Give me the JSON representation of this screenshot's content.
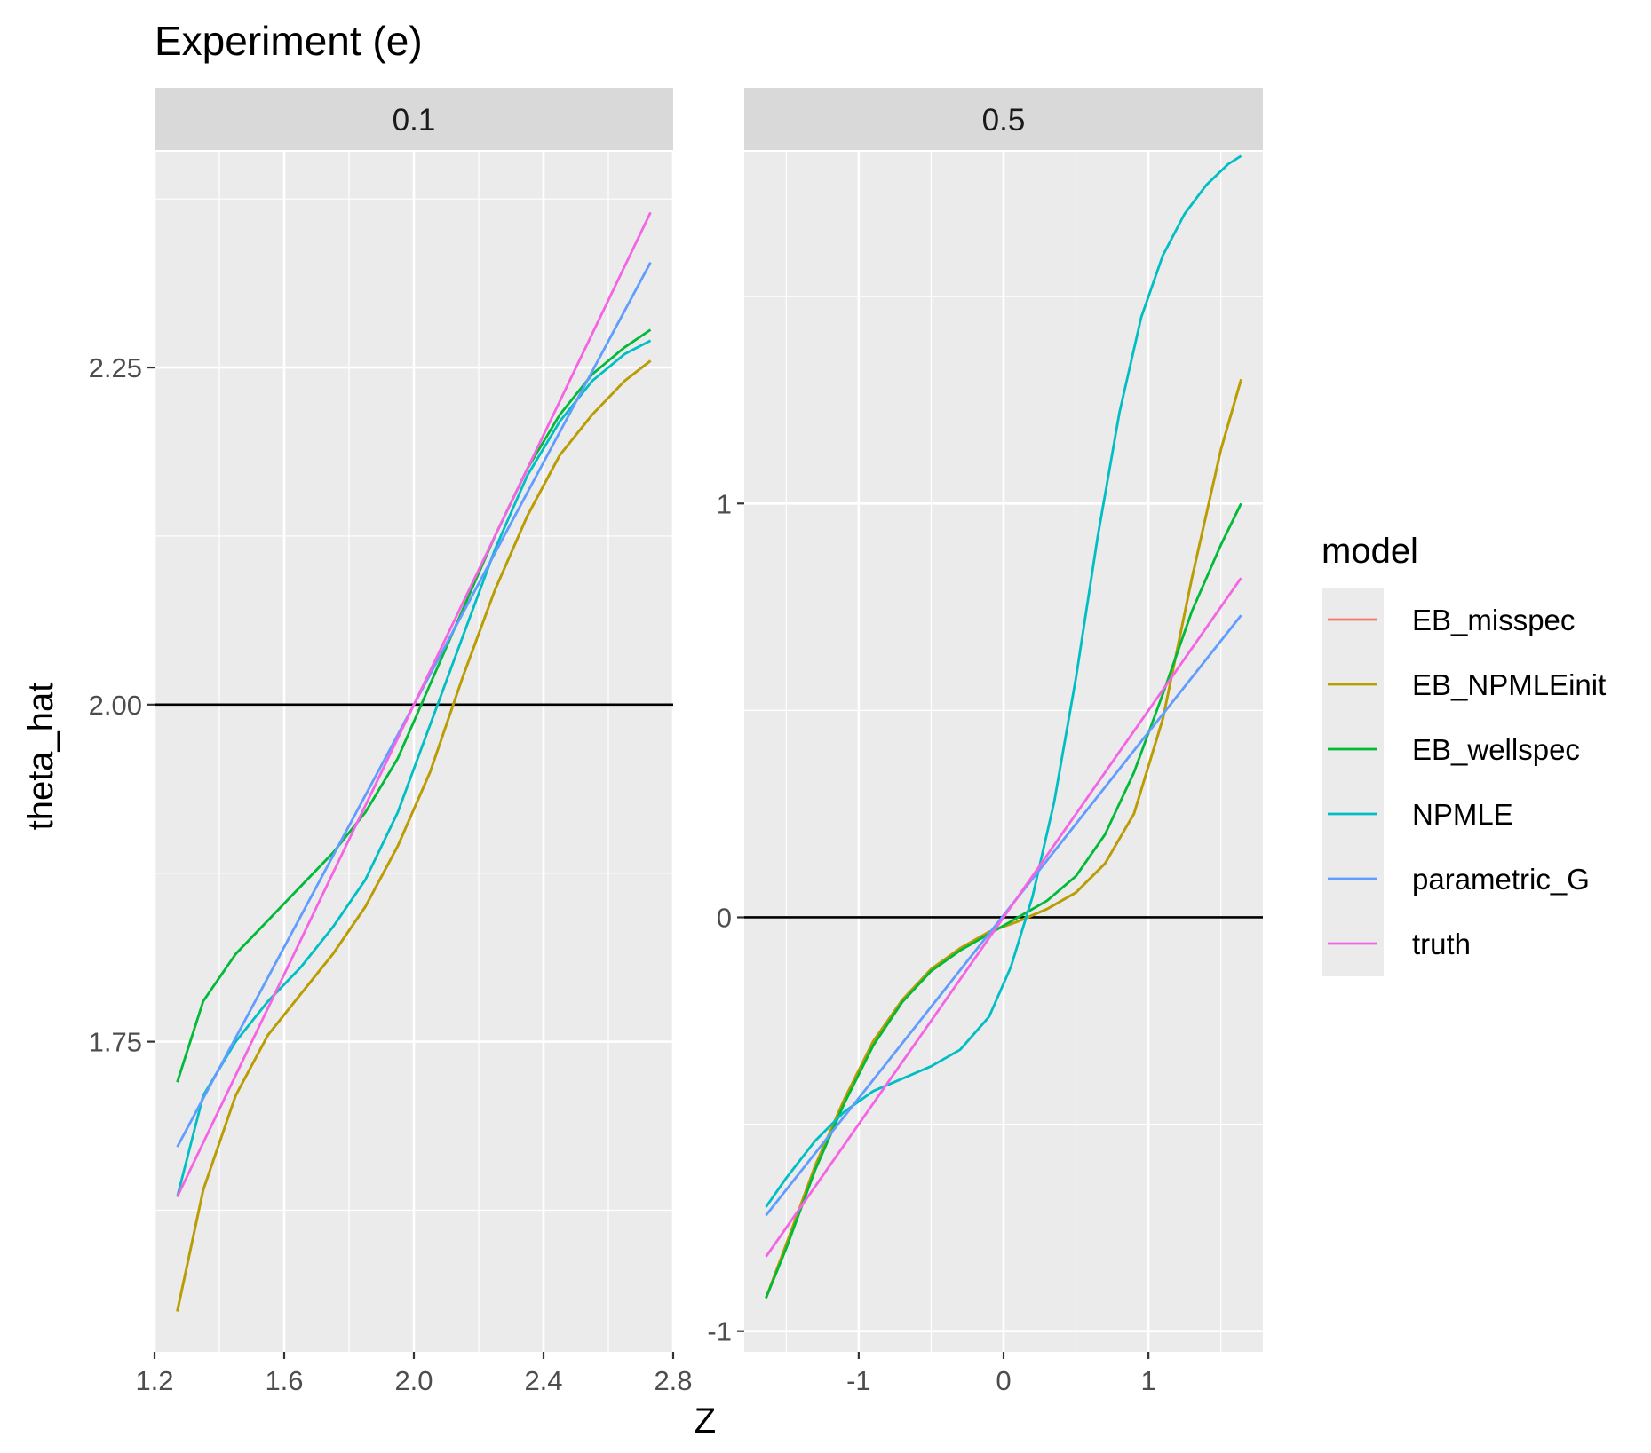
{
  "chart_data": {
    "type": "line",
    "title": "Experiment (e)",
    "xlabel": "Z",
    "ylabel": "theta_hat",
    "legend": {
      "title": "model",
      "position": "right",
      "entries": [
        "EB_misspec",
        "EB_NPMLEinit",
        "EB_wellspec",
        "NPMLE",
        "parametric_G",
        "truth"
      ]
    },
    "colors": {
      "EB_misspec": "#F8766D",
      "EB_NPMLEinit": "#B79F00",
      "EB_wellspec": "#00BA38",
      "NPMLE": "#00BFC4",
      "parametric_G": "#619CFF",
      "truth": "#F564E3"
    },
    "grid": true,
    "panels": [
      {
        "strip": "0.1",
        "xlim": [
          1.2,
          2.8
        ],
        "ylim": [
          1.52,
          2.41
        ],
        "xticks": [
          1.2,
          1.6,
          2.0,
          2.4,
          2.8
        ],
        "xtick_labels": [
          "1.2",
          "1.6",
          "2.0",
          "2.4",
          "2.8"
        ],
        "yticks": [
          1.75,
          2.0,
          2.25
        ],
        "ytick_labels": [
          "1.75",
          "2.00",
          "2.25"
        ],
        "hline": 2.0,
        "series": [
          {
            "name": "EB_misspec",
            "x": [
              1.27,
              1.35,
              1.45,
              1.55,
              1.65,
              1.75,
              1.85,
              1.95,
              2.05,
              2.15,
              2.25,
              2.35,
              2.45,
              2.55,
              2.65,
              2.73
            ],
            "y": [
              1.55,
              1.64,
              1.71,
              1.755,
              1.785,
              1.815,
              1.85,
              1.895,
              1.95,
              2.02,
              2.085,
              2.14,
              2.185,
              2.215,
              2.24,
              2.255
            ]
          },
          {
            "name": "EB_NPMLEinit",
            "x": [
              1.27,
              1.35,
              1.45,
              1.55,
              1.65,
              1.75,
              1.85,
              1.95,
              2.05,
              2.15,
              2.25,
              2.35,
              2.45,
              2.55,
              2.65,
              2.73
            ],
            "y": [
              1.55,
              1.64,
              1.71,
              1.755,
              1.785,
              1.815,
              1.85,
              1.895,
              1.95,
              2.02,
              2.085,
              2.14,
              2.185,
              2.215,
              2.24,
              2.255
            ]
          },
          {
            "name": "EB_wellspec",
            "x": [
              1.27,
              1.35,
              1.45,
              1.55,
              1.65,
              1.75,
              1.85,
              1.95,
              2.05,
              2.15,
              2.25,
              2.35,
              2.45,
              2.55,
              2.65,
              2.73
            ],
            "y": [
              1.72,
              1.78,
              1.815,
              1.84,
              1.865,
              1.89,
              1.92,
              1.96,
              2.015,
              2.07,
              2.125,
              2.175,
              2.215,
              2.245,
              2.265,
              2.278
            ]
          },
          {
            "name": "NPMLE",
            "x": [
              1.27,
              1.35,
              1.45,
              1.55,
              1.65,
              1.75,
              1.85,
              1.95,
              2.05,
              2.15,
              2.25,
              2.35,
              2.45,
              2.55,
              2.65,
              2.73
            ],
            "y": [
              1.635,
              1.71,
              1.75,
              1.78,
              1.805,
              1.835,
              1.87,
              1.92,
              1.985,
              2.05,
              2.115,
              2.17,
              2.21,
              2.24,
              2.26,
              2.27
            ]
          },
          {
            "name": "parametric_G",
            "x": [
              1.27,
              2.73
            ],
            "y": [
              1.672,
              2.328
            ]
          },
          {
            "name": "truth",
            "x": [
              1.27,
              2.73
            ],
            "y": [
              1.635,
              2.365
            ]
          }
        ]
      },
      {
        "strip": "0.5",
        "xlim": [
          -1.79,
          1.79
        ],
        "ylim": [
          -1.05,
          1.85
        ],
        "xticks": [
          -1,
          0,
          1
        ],
        "xtick_labels": [
          "-1",
          "0",
          "1"
        ],
        "yticks": [
          -1,
          0,
          1
        ],
        "ytick_labels": [
          "-1",
          "0",
          "1"
        ],
        "hline": 0,
        "series": [
          {
            "name": "EB_misspec",
            "x": [
              -1.64,
              -1.5,
              -1.3,
              -1.1,
              -0.9,
              -0.7,
              -0.5,
              -0.3,
              -0.1,
              0.1,
              0.3,
              0.5,
              0.7,
              0.9,
              1.1,
              1.3,
              1.5,
              1.64
            ],
            "y": [
              -0.92,
              -0.79,
              -0.6,
              -0.44,
              -0.3,
              -0.2,
              -0.125,
              -0.075,
              -0.035,
              -0.01,
              0.02,
              0.06,
              0.13,
              0.25,
              0.48,
              0.82,
              1.13,
              1.3
            ]
          },
          {
            "name": "EB_NPMLEinit",
            "x": [
              -1.64,
              -1.5,
              -1.3,
              -1.1,
              -0.9,
              -0.7,
              -0.5,
              -0.3,
              -0.1,
              0.1,
              0.3,
              0.5,
              0.7,
              0.9,
              1.1,
              1.3,
              1.5,
              1.64
            ],
            "y": [
              -0.92,
              -0.79,
              -0.6,
              -0.44,
              -0.3,
              -0.2,
              -0.125,
              -0.075,
              -0.035,
              -0.01,
              0.02,
              0.06,
              0.13,
              0.25,
              0.48,
              0.82,
              1.13,
              1.3
            ]
          },
          {
            "name": "EB_wellspec",
            "x": [
              -1.64,
              -1.5,
              -1.3,
              -1.1,
              -0.9,
              -0.7,
              -0.5,
              -0.3,
              -0.1,
              0.1,
              0.3,
              0.5,
              0.7,
              0.9,
              1.1,
              1.3,
              1.5,
              1.64
            ],
            "y": [
              -0.92,
              -0.8,
              -0.61,
              -0.45,
              -0.31,
              -0.205,
              -0.13,
              -0.08,
              -0.04,
              0.0,
              0.04,
              0.1,
              0.2,
              0.35,
              0.54,
              0.74,
              0.9,
              1.0
            ]
          },
          {
            "name": "NPMLE",
            "x": [
              -1.64,
              -1.5,
              -1.3,
              -1.1,
              -0.9,
              -0.7,
              -0.5,
              -0.3,
              -0.1,
              0.05,
              0.2,
              0.35,
              0.5,
              0.65,
              0.8,
              0.95,
              1.1,
              1.25,
              1.4,
              1.55,
              1.64
            ],
            "y": [
              -0.7,
              -0.63,
              -0.54,
              -0.47,
              -0.42,
              -0.39,
              -0.36,
              -0.32,
              -0.24,
              -0.12,
              0.05,
              0.28,
              0.58,
              0.92,
              1.22,
              1.45,
              1.6,
              1.7,
              1.77,
              1.82,
              1.84
            ]
          },
          {
            "name": "parametric_G",
            "x": [
              -1.64,
              1.64
            ],
            "y": [
              -0.72,
              0.73
            ]
          },
          {
            "name": "truth",
            "x": [
              -1.64,
              1.64
            ],
            "y": [
              -0.82,
              0.82
            ]
          }
        ]
      }
    ]
  }
}
